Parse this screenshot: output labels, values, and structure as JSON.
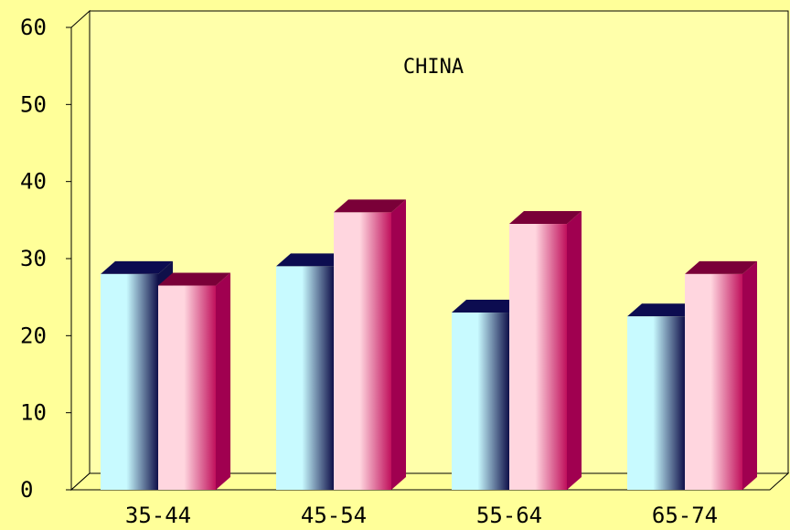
{
  "chart_data": {
    "type": "bar",
    "title": "CHINA",
    "categories": [
      "35-44",
      "45-54",
      "55-64",
      "65-74"
    ],
    "series": [
      {
        "values": [
          28,
          29,
          23,
          22.5
        ]
      },
      {
        "values": [
          26.5,
          36,
          34.5,
          28
        ]
      }
    ],
    "y_ticks": [
      "0",
      "10",
      "20",
      "30",
      "40",
      "50",
      "60"
    ],
    "ylim": [
      0,
      60
    ],
    "grid": false,
    "legend": "none",
    "three_d": true,
    "colors": {
      "series_1_light": "#C8FAFF",
      "series_1_dark": "#10104A",
      "series_1_top": "#0C0C50",
      "series_2_light": "#FFD6DF",
      "series_2_dark": "#C0105C",
      "series_2_side": "#A00050",
      "series_2_top": "#7A0038",
      "plot_back": "#FFFFAA",
      "page_background": "#FFFF99"
    }
  }
}
